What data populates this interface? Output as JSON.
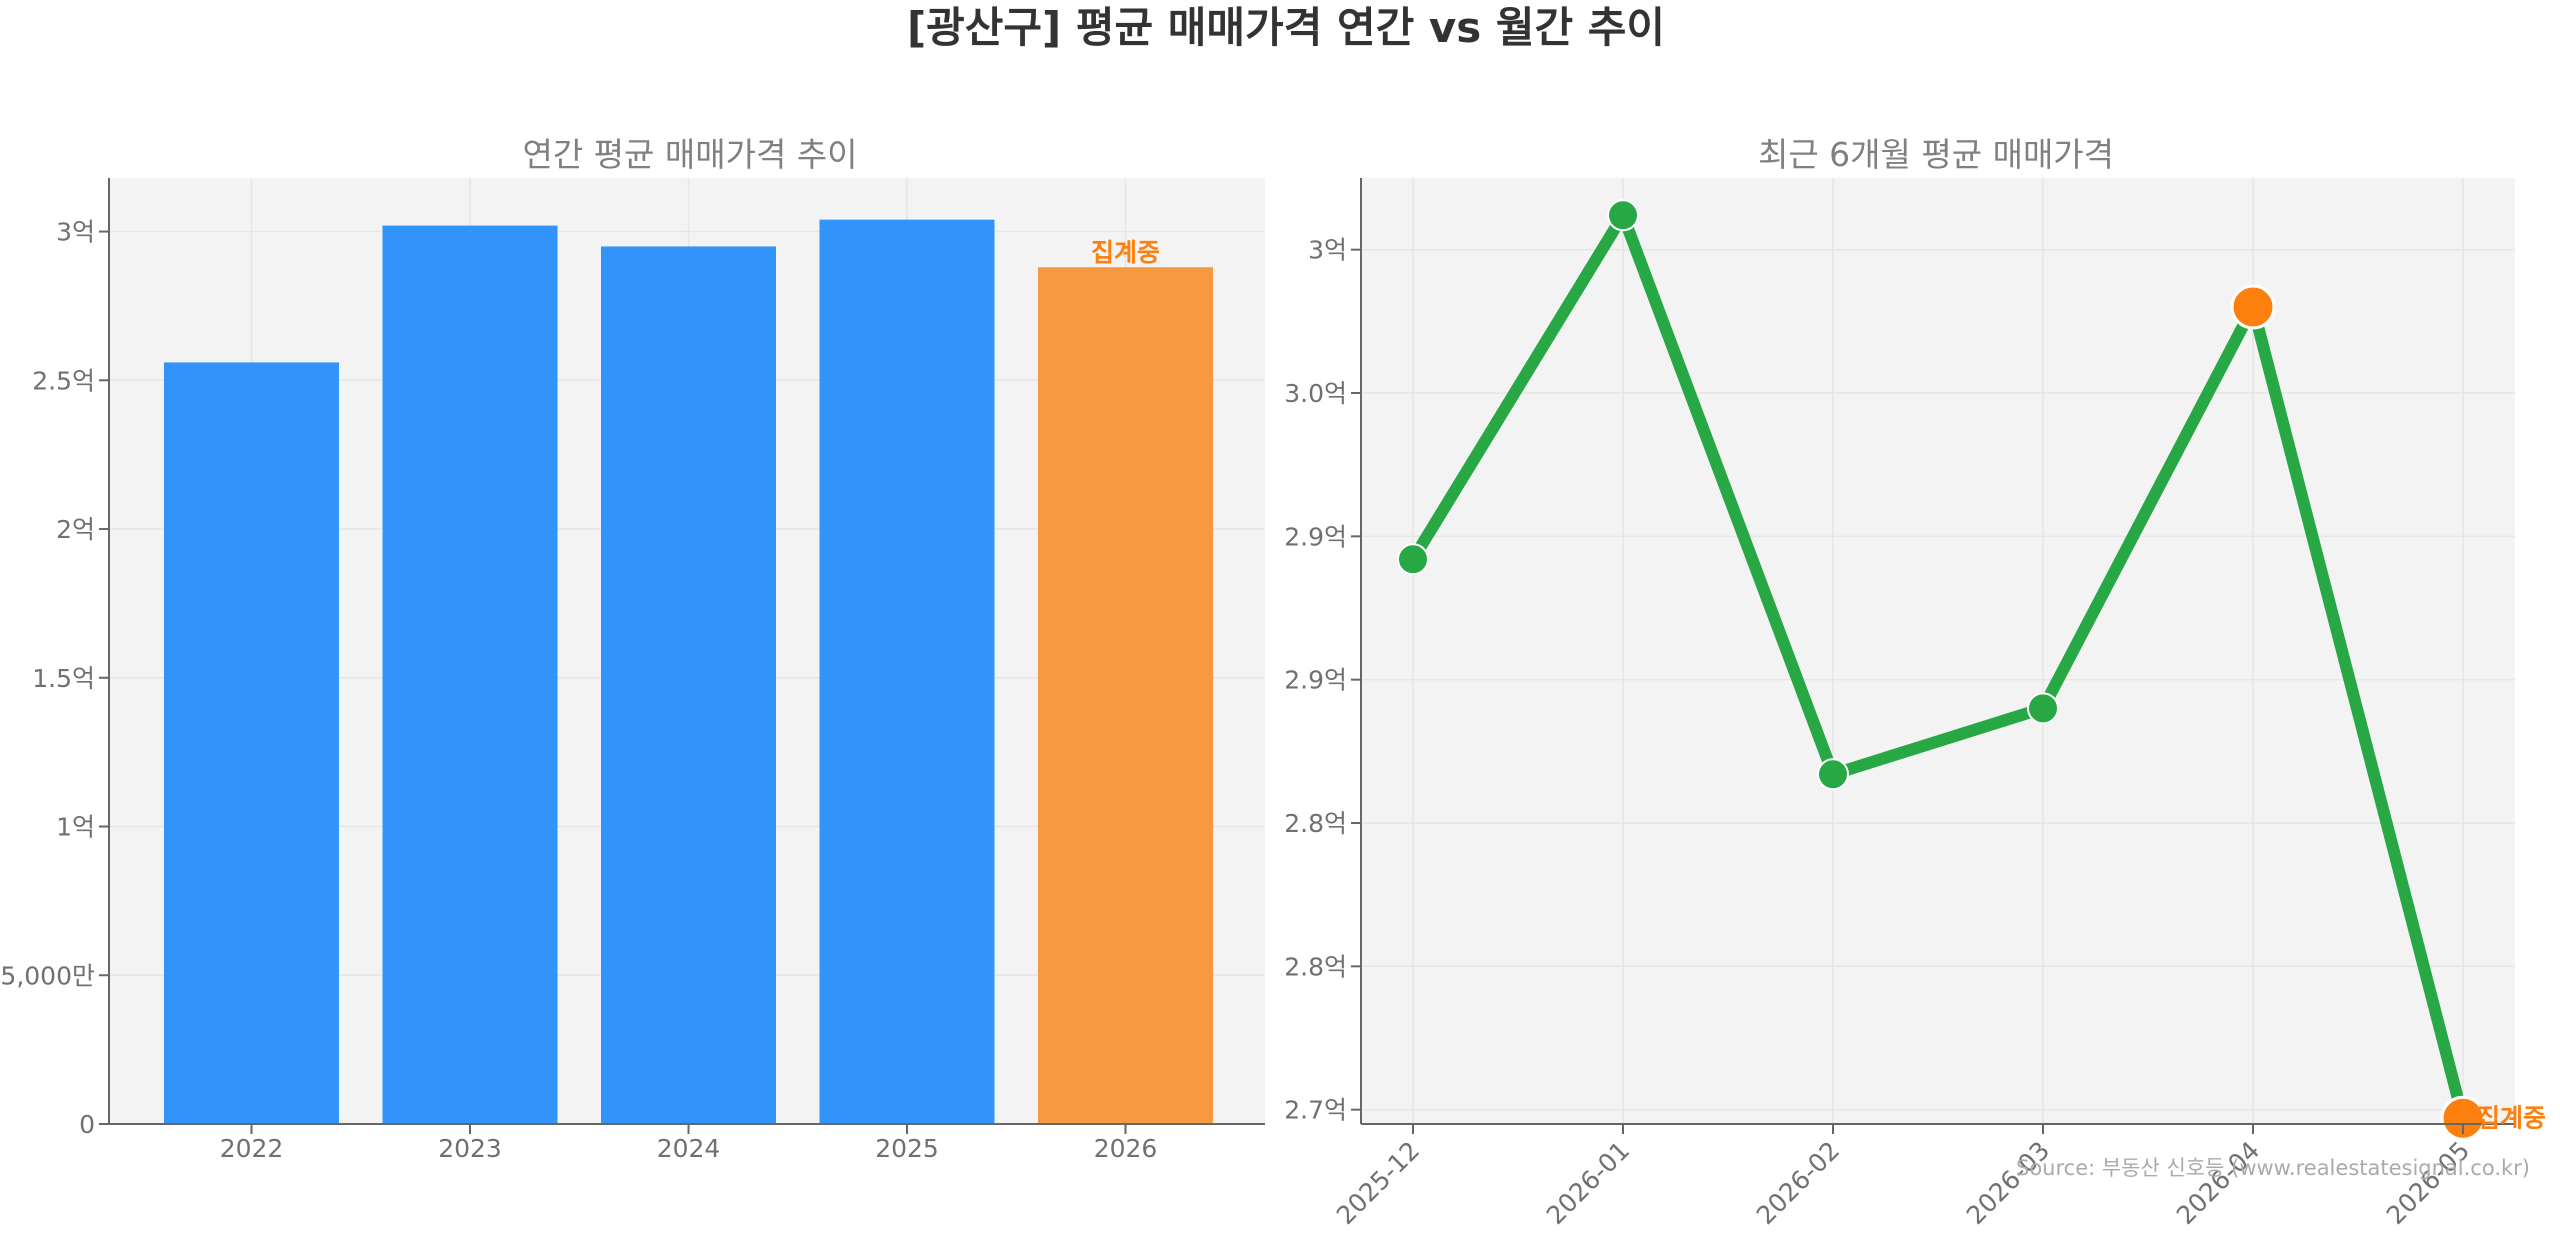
{
  "title": "[광산구] 평균 매매가격 연간 vs 월간 추이",
  "source": "Source: 부동산 신호등 (www.realestatesignal.co.kr)",
  "colors": {
    "bar_main": "#3293fa",
    "bar_partial": "#f89840",
    "line": "#28a745",
    "partial_marker": "#fd7f0e",
    "partial_text": "#fd7f0e",
    "panel_bg": "#f3f3f3",
    "grid": "#e6e6e6",
    "tick_text": "#707070",
    "title_text": "#808080",
    "main_title": "#333333"
  },
  "chart_data": [
    {
      "type": "bar",
      "title": "연간 평균 매매가격 추이",
      "categories": [
        "2022",
        "2023",
        "2024",
        "2025",
        "2026"
      ],
      "values": [
        25600,
        30200,
        29500,
        30400,
        28800
      ],
      "partial_index": 4,
      "partial_label": "집계중",
      "ylim": [
        0,
        31800
      ],
      "yticks": [
        {
          "value": 0,
          "label": "0"
        },
        {
          "value": 5000,
          "label": "5,000만"
        },
        {
          "value": 10000,
          "label": "1억"
        },
        {
          "value": 15000,
          "label": "1.5억"
        },
        {
          "value": 20000,
          "label": "2억"
        },
        {
          "value": 25000,
          "label": "2.5억"
        },
        {
          "value": 30000,
          "label": "3억"
        }
      ],
      "grid": true
    },
    {
      "type": "line",
      "title": "최근 6개월 평균 매매가격",
      "categories": [
        "2025-12",
        "2026-01",
        "2026-02",
        "2026-03",
        "2026-04",
        "2026-05"
      ],
      "values": [
        28920,
        30120,
        28170,
        28400,
        29800,
        26970
      ],
      "partial_indices": [
        4,
        5
      ],
      "partial_label": "집계중",
      "ylim": [
        26950,
        30250
      ],
      "yticks": [
        {
          "value": 27000,
          "label": "2.7억"
        },
        {
          "value": 27500,
          "label": "2.8억"
        },
        {
          "value": 28000,
          "label": "2.8억"
        },
        {
          "value": 28500,
          "label": "2.9억"
        },
        {
          "value": 29000,
          "label": "2.9억"
        },
        {
          "value": 29500,
          "label": "3.0억"
        },
        {
          "value": 30000,
          "label": "3억"
        }
      ],
      "grid": true
    }
  ]
}
